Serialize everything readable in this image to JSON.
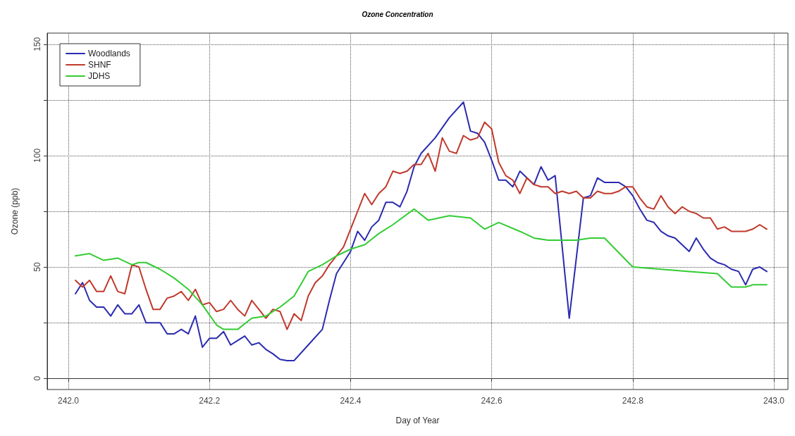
{
  "chart_data": {
    "type": "line",
    "title": "Ozone Concentration",
    "xlabel": "Day of Year",
    "ylabel": "Ozone (ppb)",
    "xlim": [
      241.97,
      243.02
    ],
    "xticks": [
      {
        "value": 242,
        "label": "242.0"
      },
      242.2,
      242.4,
      242.6,
      242.8,
      {
        "value": 243,
        "label": "243.0"
      }
    ],
    "ylim": [
      -5,
      155
    ],
    "yticks": [
      0,
      {
        "value": 25,
        "label": null
      },
      50,
      {
        "value": 75,
        "label": null
      },
      100,
      {
        "value": 125,
        "label": null
      },
      150
    ],
    "grid": true,
    "legend": "top left",
    "line_style": "solid",
    "marker": "none",
    "series": [
      {
        "name": "Woodlands",
        "color": "#2b2bb0",
        "x": [
          242.01,
          242.02,
          242.03,
          242.04,
          242.05,
          242.06,
          242.07,
          242.08,
          242.09,
          242.1,
          242.11,
          242.12,
          242.13,
          242.14,
          242.15,
          242.16,
          242.17,
          242.18,
          242.19,
          242.2,
          242.21,
          242.22,
          242.23,
          242.24,
          242.25,
          242.26,
          242.27,
          242.28,
          242.29,
          242.3,
          242.31,
          242.32,
          242.34,
          242.36,
          242.37,
          242.38,
          242.39,
          242.4,
          242.41,
          242.42,
          242.43,
          242.44,
          242.45,
          242.46,
          242.47,
          242.48,
          242.49,
          242.5,
          242.52,
          242.54,
          242.56,
          242.57,
          242.58,
          242.59,
          242.6,
          242.61,
          242.62,
          242.63,
          242.64,
          242.65,
          242.66,
          242.67,
          242.68,
          242.69,
          242.71,
          242.73,
          242.74,
          242.75,
          242.76,
          242.77,
          242.78,
          242.79,
          242.8,
          242.81,
          242.82,
          242.83,
          242.84,
          242.85,
          242.86,
          242.87,
          242.88,
          242.89,
          242.9,
          242.91,
          242.92,
          242.93,
          242.94,
          242.95,
          242.96,
          242.97,
          242.98,
          242.99
        ],
        "values": [
          38,
          43,
          35,
          32,
          32,
          28,
          33,
          29,
          29,
          33,
          25,
          25,
          25,
          20,
          20,
          22,
          20,
          28,
          14,
          18,
          18,
          21,
          15,
          17,
          19,
          15,
          16,
          13,
          11,
          8.5,
          8,
          8,
          15,
          22,
          35,
          47,
          52,
          57,
          66,
          62,
          68,
          71,
          79,
          79,
          77,
          84,
          95,
          101,
          108,
          117,
          124,
          111,
          110,
          106,
          98,
          89,
          89,
          86,
          93,
          90,
          87,
          95,
          89,
          91,
          27,
          81,
          82,
          90,
          88,
          88,
          88,
          86,
          82,
          76,
          71,
          70,
          66,
          64,
          63,
          60,
          57,
          63,
          58,
          54,
          52,
          51,
          49,
          48,
          42,
          49,
          50,
          48
        ]
      },
      {
        "name": "SHNF",
        "color": "#c0392b",
        "x": [
          242.01,
          242.02,
          242.03,
          242.04,
          242.05,
          242.06,
          242.07,
          242.08,
          242.09,
          242.1,
          242.11,
          242.12,
          242.13,
          242.14,
          242.15,
          242.16,
          242.17,
          242.18,
          242.19,
          242.2,
          242.21,
          242.22,
          242.23,
          242.24,
          242.25,
          242.26,
          242.27,
          242.28,
          242.29,
          242.3,
          242.31,
          242.32,
          242.33,
          242.34,
          242.35,
          242.36,
          242.37,
          242.38,
          242.39,
          242.4,
          242.41,
          242.42,
          242.43,
          242.44,
          242.45,
          242.46,
          242.47,
          242.48,
          242.49,
          242.5,
          242.51,
          242.52,
          242.53,
          242.54,
          242.55,
          242.56,
          242.57,
          242.58,
          242.59,
          242.6,
          242.61,
          242.62,
          242.63,
          242.64,
          242.65,
          242.66,
          242.67,
          242.68,
          242.69,
          242.7,
          242.71,
          242.72,
          242.73,
          242.74,
          242.75,
          242.76,
          242.77,
          242.78,
          242.79,
          242.8,
          242.81,
          242.82,
          242.83,
          242.84,
          242.85,
          242.86,
          242.87,
          242.88,
          242.89,
          242.9,
          242.91,
          242.92,
          242.93,
          242.94,
          242.95,
          242.96,
          242.97,
          242.98,
          242.99
        ],
        "values": [
          44,
          41,
          44,
          39,
          39,
          46,
          39,
          38,
          51,
          50,
          40,
          31,
          31,
          36,
          37,
          39,
          35,
          40,
          33,
          34,
          30,
          31,
          35,
          31,
          28,
          35,
          31,
          27,
          31,
          30,
          22,
          29,
          26,
          37,
          43,
          46,
          51,
          55,
          59,
          67,
          75,
          83,
          78,
          83,
          86,
          93,
          92,
          93,
          96,
          96,
          101,
          93,
          108,
          102,
          101,
          109,
          107,
          108,
          115,
          112,
          97,
          91,
          89,
          83,
          90,
          87,
          86,
          86,
          83,
          84,
          83,
          84,
          81,
          81,
          84,
          83,
          83,
          84,
          86,
          86,
          81,
          77,
          76,
          82,
          77,
          74,
          77,
          75,
          74,
          72,
          72,
          67,
          68,
          66,
          66,
          66,
          67,
          69,
          67
        ]
      },
      {
        "name": "JDHS",
        "color": "#33cc33",
        "x": [
          242.01,
          242.03,
          242.05,
          242.07,
          242.09,
          242.1,
          242.11,
          242.13,
          242.15,
          242.17,
          242.19,
          242.21,
          242.22,
          242.24,
          242.26,
          242.28,
          242.3,
          242.32,
          242.34,
          242.36,
          242.38,
          242.4,
          242.42,
          242.44,
          242.46,
          242.49,
          242.51,
          242.54,
          242.57,
          242.59,
          242.61,
          242.64,
          242.66,
          242.68,
          242.7,
          242.72,
          242.74,
          242.76,
          242.8,
          242.84,
          242.88,
          242.92,
          242.94,
          242.96,
          242.97,
          242.99
        ],
        "values": [
          55,
          56,
          53,
          54,
          51,
          52,
          52,
          49,
          45,
          40,
          33,
          24,
          22,
          22,
          27,
          28,
          32,
          37,
          48,
          51,
          55,
          58,
          60,
          65,
          69,
          76,
          71,
          73,
          72,
          67,
          70,
          66,
          63,
          62,
          62,
          62,
          63,
          63,
          50,
          49,
          48,
          47,
          41,
          41,
          42,
          42
        ]
      }
    ]
  }
}
